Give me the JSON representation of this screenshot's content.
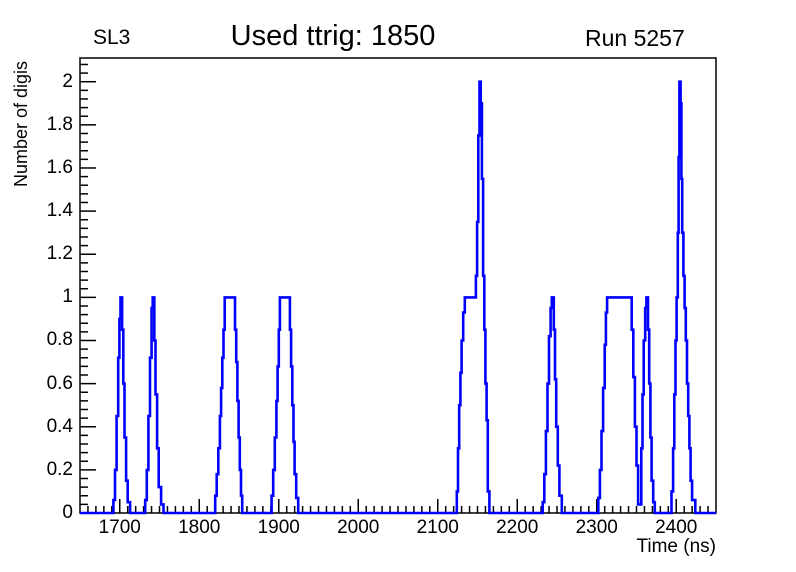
{
  "annotations": {
    "left": "SL3",
    "right": "Run 5257"
  },
  "chart_data": {
    "type": "line",
    "title": "Used ttrig: 1850",
    "xlabel": "Time (ns)",
    "ylabel": "Number of digis",
    "xlim": [
      1650,
      2450
    ],
    "ylim": [
      0,
      2.11
    ],
    "grid": false,
    "legend": "none",
    "line_color": "#0000ff",
    "axis_color": "#000000",
    "x_ticks": [
      {
        "value": 1700,
        "label": "1700"
      },
      {
        "value": 1800,
        "label": "1800"
      },
      {
        "value": 1900,
        "label": "1900"
      },
      {
        "value": 2000,
        "label": "2000"
      },
      {
        "value": 2100,
        "label": "2100"
      },
      {
        "value": 2200,
        "label": "2200"
      },
      {
        "value": 2300,
        "label": "2300"
      },
      {
        "value": 2400,
        "label": "2400"
      }
    ],
    "x_minor_step": 10,
    "y_ticks": [
      {
        "value": 0,
        "label": "0"
      },
      {
        "value": 0.2,
        "label": "0.2"
      },
      {
        "value": 0.4,
        "label": "0.4"
      },
      {
        "value": 0.6,
        "label": "0.6"
      },
      {
        "value": 0.8,
        "label": "0.8"
      },
      {
        "value": 1,
        "label": "1"
      },
      {
        "value": 1.2,
        "label": "1.2"
      },
      {
        "value": 1.4,
        "label": "1.4"
      },
      {
        "value": 1.6,
        "label": "1.6"
      },
      {
        "value": 1.8,
        "label": "1.8"
      },
      {
        "value": 2,
        "label": "2"
      }
    ],
    "y_minor_step": 0.04,
    "peaks_summary": [
      {
        "t_peak": 1702,
        "height": 1
      },
      {
        "t_peak": 1742,
        "height": 1
      },
      {
        "t_plateau": [
          1832,
          1845
        ],
        "height": 1
      },
      {
        "t_plateau": [
          1902,
          1914
        ],
        "height": 1
      },
      {
        "t_peak": 2153,
        "height": 2,
        "shoulder_at_1": [
          2134,
          2148
        ]
      },
      {
        "t_peak": 2245,
        "height": 1
      },
      {
        "t_plateau": [
          2313,
          2344
        ],
        "height": 1
      },
      {
        "t_peak": 2364,
        "height": 1
      },
      {
        "t_peak": 2405,
        "height": 2
      }
    ],
    "curve": [
      [
        1650,
        0
      ],
      [
        1692,
        0
      ],
      [
        1692,
        0.06
      ],
      [
        1694,
        0.06
      ],
      [
        1694,
        0.2
      ],
      [
        1696,
        0.2
      ],
      [
        1696,
        0.45
      ],
      [
        1698,
        0.45
      ],
      [
        1698,
        0.72
      ],
      [
        1699.5,
        0.72
      ],
      [
        1699.5,
        0.9
      ],
      [
        1701,
        0.9
      ],
      [
        1701,
        1
      ],
      [
        1703,
        1
      ],
      [
        1703,
        0.85
      ],
      [
        1704.5,
        0.85
      ],
      [
        1704.5,
        0.6
      ],
      [
        1706,
        0.6
      ],
      [
        1706,
        0.35
      ],
      [
        1708,
        0.35
      ],
      [
        1708,
        0.15
      ],
      [
        1710,
        0.15
      ],
      [
        1710,
        0.05
      ],
      [
        1713,
        0.05
      ],
      [
        1713,
        0
      ],
      [
        1732,
        0
      ],
      [
        1732,
        0.06
      ],
      [
        1734,
        0.06
      ],
      [
        1734,
        0.2
      ],
      [
        1736,
        0.2
      ],
      [
        1736,
        0.45
      ],
      [
        1738,
        0.45
      ],
      [
        1738,
        0.72
      ],
      [
        1740,
        0.72
      ],
      [
        1740,
        0.95
      ],
      [
        1741.5,
        0.95
      ],
      [
        1741.5,
        1
      ],
      [
        1743.5,
        1
      ],
      [
        1743.5,
        0.8
      ],
      [
        1745,
        0.8
      ],
      [
        1745,
        0.55
      ],
      [
        1747,
        0.55
      ],
      [
        1747,
        0.3
      ],
      [
        1749,
        0.3
      ],
      [
        1749,
        0.12
      ],
      [
        1752,
        0.12
      ],
      [
        1752,
        0.04
      ],
      [
        1755,
        0.04
      ],
      [
        1755,
        0
      ],
      [
        1820,
        0
      ],
      [
        1820,
        0.08
      ],
      [
        1822,
        0.08
      ],
      [
        1822,
        0.18
      ],
      [
        1824,
        0.18
      ],
      [
        1824,
        0.3
      ],
      [
        1826,
        0.3
      ],
      [
        1826,
        0.45
      ],
      [
        1827.5,
        0.45
      ],
      [
        1827.5,
        0.58
      ],
      [
        1829,
        0.58
      ],
      [
        1829,
        0.72
      ],
      [
        1830.5,
        0.72
      ],
      [
        1830.5,
        0.85
      ],
      [
        1832,
        0.85
      ],
      [
        1832,
        1
      ],
      [
        1845,
        1
      ],
      [
        1845,
        0.85
      ],
      [
        1846.5,
        0.85
      ],
      [
        1846.5,
        0.7
      ],
      [
        1848,
        0.7
      ],
      [
        1848,
        0.52
      ],
      [
        1849.5,
        0.52
      ],
      [
        1849.5,
        0.35
      ],
      [
        1851,
        0.35
      ],
      [
        1851,
        0.2
      ],
      [
        1852.5,
        0.2
      ],
      [
        1852.5,
        0.08
      ],
      [
        1854,
        0.08
      ],
      [
        1854,
        0
      ],
      [
        1891,
        0
      ],
      [
        1891,
        0.08
      ],
      [
        1893,
        0.08
      ],
      [
        1893,
        0.2
      ],
      [
        1895,
        0.2
      ],
      [
        1895,
        0.35
      ],
      [
        1897,
        0.35
      ],
      [
        1897,
        0.52
      ],
      [
        1898.5,
        0.52
      ],
      [
        1898.5,
        0.68
      ],
      [
        1900,
        0.68
      ],
      [
        1900,
        0.85
      ],
      [
        1901.5,
        0.85
      ],
      [
        1901.5,
        1
      ],
      [
        1914,
        1
      ],
      [
        1914,
        0.85
      ],
      [
        1915.5,
        0.85
      ],
      [
        1915.5,
        0.68
      ],
      [
        1917,
        0.68
      ],
      [
        1917,
        0.5
      ],
      [
        1918.5,
        0.5
      ],
      [
        1918.5,
        0.33
      ],
      [
        1920,
        0.33
      ],
      [
        1920,
        0.18
      ],
      [
        1922,
        0.18
      ],
      [
        1922,
        0.07
      ],
      [
        1924.5,
        0.07
      ],
      [
        1924.5,
        0
      ],
      [
        2124,
        0
      ],
      [
        2124,
        0.1
      ],
      [
        2125.5,
        0.1
      ],
      [
        2125.5,
        0.3
      ],
      [
        2127,
        0.3
      ],
      [
        2127,
        0.5
      ],
      [
        2128.5,
        0.5
      ],
      [
        2128.5,
        0.65
      ],
      [
        2130,
        0.65
      ],
      [
        2130,
        0.8
      ],
      [
        2132,
        0.8
      ],
      [
        2132,
        0.93
      ],
      [
        2134,
        0.93
      ],
      [
        2134,
        1
      ],
      [
        2148,
        1
      ],
      [
        2148,
        1.1
      ],
      [
        2149.5,
        1.1
      ],
      [
        2149.5,
        1.35
      ],
      [
        2151,
        1.35
      ],
      [
        2151,
        1.75
      ],
      [
        2152.5,
        1.75
      ],
      [
        2152.5,
        2
      ],
      [
        2154,
        2
      ],
      [
        2154,
        1.9
      ],
      [
        2155.5,
        1.9
      ],
      [
        2155.5,
        1.55
      ],
      [
        2157,
        1.55
      ],
      [
        2157,
        1.1
      ],
      [
        2158.5,
        1.1
      ],
      [
        2158.5,
        0.85
      ],
      [
        2160,
        0.85
      ],
      [
        2160,
        0.6
      ],
      [
        2161.5,
        0.6
      ],
      [
        2161.5,
        0.43
      ],
      [
        2163,
        0.43
      ],
      [
        2163,
        0.1
      ],
      [
        2165,
        0.1
      ],
      [
        2165,
        0
      ],
      [
        2232,
        0
      ],
      [
        2232,
        0.05
      ],
      [
        2234,
        0.05
      ],
      [
        2234,
        0.18
      ],
      [
        2236,
        0.18
      ],
      [
        2236,
        0.38
      ],
      [
        2238,
        0.38
      ],
      [
        2238,
        0.6
      ],
      [
        2240,
        0.6
      ],
      [
        2240,
        0.82
      ],
      [
        2242,
        0.82
      ],
      [
        2242,
        0.95
      ],
      [
        2243.5,
        0.95
      ],
      [
        2243.5,
        1
      ],
      [
        2246,
        1
      ],
      [
        2246,
        0.85
      ],
      [
        2247.5,
        0.85
      ],
      [
        2247.5,
        0.62
      ],
      [
        2249,
        0.62
      ],
      [
        2249,
        0.4
      ],
      [
        2251,
        0.4
      ],
      [
        2251,
        0.22
      ],
      [
        2253,
        0.22
      ],
      [
        2253,
        0.08
      ],
      [
        2256,
        0.08
      ],
      [
        2256,
        0
      ],
      [
        2302,
        0
      ],
      [
        2302,
        0.07
      ],
      [
        2304,
        0.07
      ],
      [
        2304,
        0.2
      ],
      [
        2306,
        0.2
      ],
      [
        2306,
        0.38
      ],
      [
        2308,
        0.38
      ],
      [
        2308,
        0.58
      ],
      [
        2310,
        0.58
      ],
      [
        2310,
        0.78
      ],
      [
        2311.5,
        0.78
      ],
      [
        2311.5,
        0.93
      ],
      [
        2313,
        0.93
      ],
      [
        2313,
        1
      ],
      [
        2344,
        1
      ],
      [
        2344,
        0.85
      ],
      [
        2346,
        0.85
      ],
      [
        2346,
        0.63
      ],
      [
        2348,
        0.63
      ],
      [
        2348,
        0.4
      ],
      [
        2350,
        0.4
      ],
      [
        2350,
        0.22
      ],
      [
        2352,
        0.22
      ],
      [
        2352,
        0.04
      ],
      [
        2356,
        0.04
      ],
      [
        2356,
        0.3
      ],
      [
        2357.5,
        0.3
      ],
      [
        2357.5,
        0.55
      ],
      [
        2359,
        0.55
      ],
      [
        2359,
        0.8
      ],
      [
        2361,
        0.8
      ],
      [
        2361,
        0.95
      ],
      [
        2362.5,
        0.95
      ],
      [
        2362.5,
        1
      ],
      [
        2364.5,
        1
      ],
      [
        2364.5,
        0.85
      ],
      [
        2366,
        0.85
      ],
      [
        2366,
        0.6
      ],
      [
        2367.5,
        0.6
      ],
      [
        2367.5,
        0.35
      ],
      [
        2369,
        0.35
      ],
      [
        2369,
        0.15
      ],
      [
        2371,
        0.15
      ],
      [
        2371,
        0.05
      ],
      [
        2373,
        0.05
      ],
      [
        2373,
        0
      ],
      [
        2394,
        0
      ],
      [
        2394,
        0.1
      ],
      [
        2396,
        0.1
      ],
      [
        2396,
        0.3
      ],
      [
        2397.5,
        0.3
      ],
      [
        2397.5,
        0.55
      ],
      [
        2399,
        0.55
      ],
      [
        2399,
        0.8
      ],
      [
        2400.5,
        0.8
      ],
      [
        2400.5,
        1
      ],
      [
        2402,
        1
      ],
      [
        2402,
        1.3
      ],
      [
        2403,
        1.3
      ],
      [
        2403,
        1.65
      ],
      [
        2404,
        1.65
      ],
      [
        2404,
        2
      ],
      [
        2405.5,
        2
      ],
      [
        2405.5,
        1.9
      ],
      [
        2406.5,
        1.9
      ],
      [
        2406.5,
        1.55
      ],
      [
        2407.5,
        1.55
      ],
      [
        2407.5,
        1.3
      ],
      [
        2409,
        1.3
      ],
      [
        2409,
        1.1
      ],
      [
        2410.5,
        1.1
      ],
      [
        2410.5,
        0.95
      ],
      [
        2412,
        0.95
      ],
      [
        2412,
        0.8
      ],
      [
        2413.5,
        0.8
      ],
      [
        2413.5,
        0.6
      ],
      [
        2415,
        0.6
      ],
      [
        2415,
        0.45
      ],
      [
        2416.5,
        0.45
      ],
      [
        2416.5,
        0.3
      ],
      [
        2418,
        0.3
      ],
      [
        2418,
        0.15
      ],
      [
        2420,
        0.15
      ],
      [
        2420,
        0.06
      ],
      [
        2424,
        0.06
      ],
      [
        2424,
        0
      ],
      [
        2450,
        0
      ]
    ]
  }
}
